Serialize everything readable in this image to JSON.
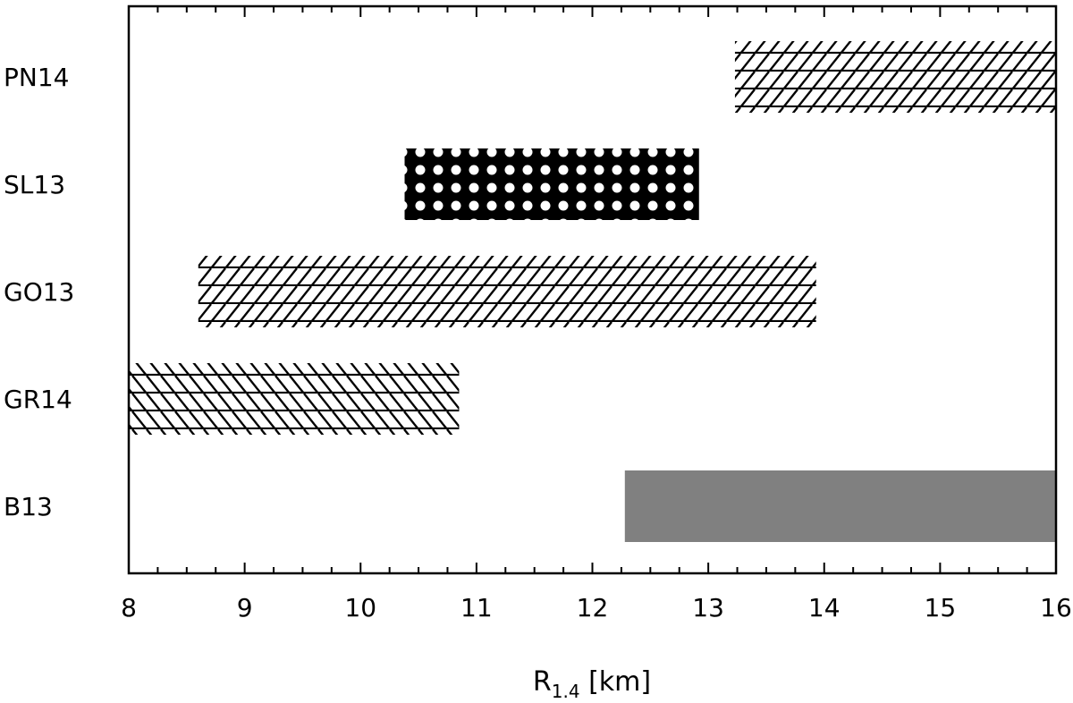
{
  "chart_data": {
    "type": "bar",
    "orientation": "horizontal",
    "xlabel": "R",
    "xlabel_subscript": "1.4",
    "xlabel_unit": "[km]",
    "xlim": [
      8,
      16
    ],
    "x_ticks": [
      8,
      9,
      10,
      11,
      12,
      13,
      14,
      15,
      16
    ],
    "grid": false,
    "legend": "none",
    "categories": [
      "PN14",
      "SL13",
      "GO13",
      "GR14",
      "B13"
    ],
    "ranges": [
      {
        "label": "PN14",
        "min": 13.23,
        "max": 16.0,
        "pattern": "diag-horizontal-hatch"
      },
      {
        "label": "SL13",
        "min": 10.38,
        "max": 12.92,
        "pattern": "black-dots"
      },
      {
        "label": "GO13",
        "min": 8.6,
        "max": 13.93,
        "pattern": "diag-horizontal-hatch"
      },
      {
        "label": "GR14",
        "min": 8.0,
        "max": 10.85,
        "pattern": "backdiag-horizontal-hatch"
      },
      {
        "label": "B13",
        "min": 12.28,
        "max": 16.0,
        "pattern": "solid-gray"
      }
    ],
    "colors": {
      "gray": "#808080",
      "ink": "#000000"
    }
  }
}
